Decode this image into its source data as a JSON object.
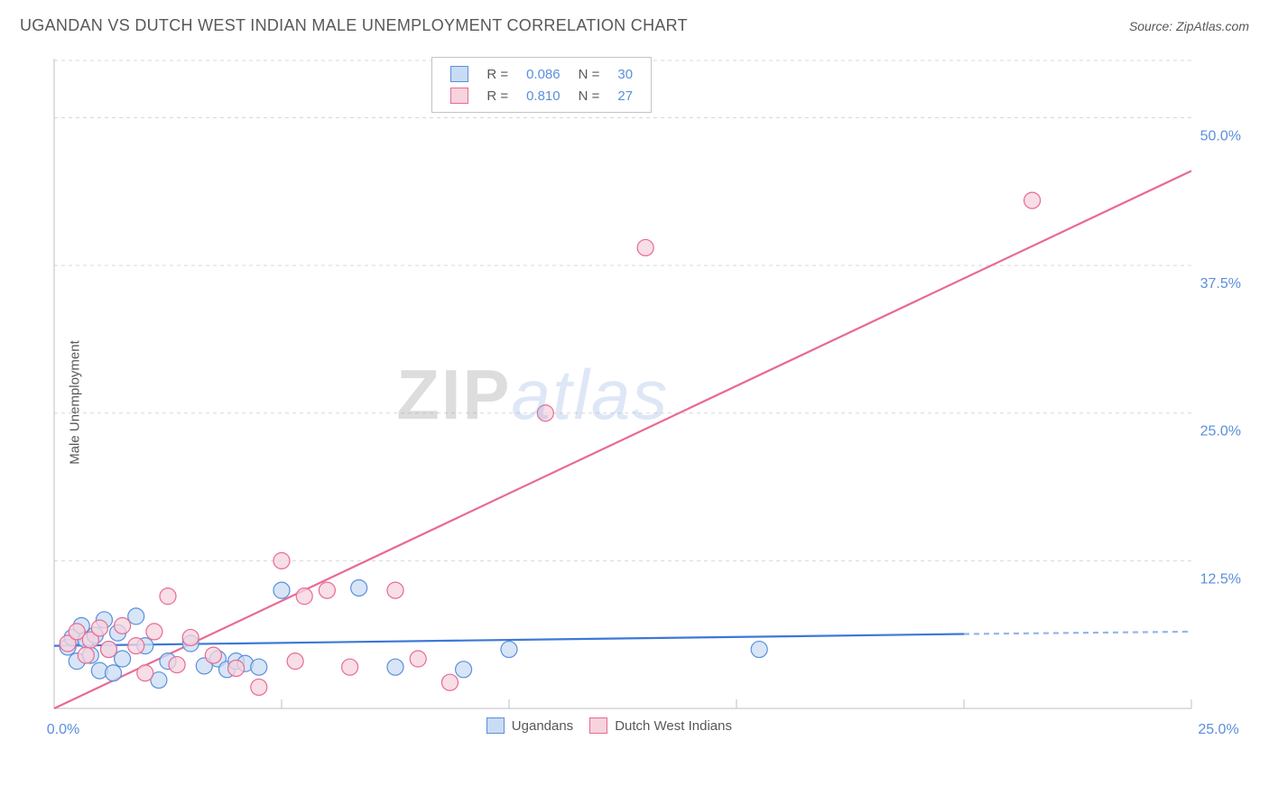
{
  "header": {
    "title": "UGANDAN VS DUTCH WEST INDIAN MALE UNEMPLOYMENT CORRELATION CHART",
    "source_prefix": "Source: ",
    "source": "ZipAtlas.com"
  },
  "y_axis_label": "Male Unemployment",
  "watermark": {
    "part1": "ZIP",
    "part2": "atlas"
  },
  "chart": {
    "type": "scatter",
    "background_color": "#ffffff",
    "grid_color": "#d8d8d8",
    "axis_color": "#bfbfbf",
    "tick_label_color": "#5a8fdc",
    "xlim": [
      0,
      25
    ],
    "ylim": [
      0,
      55
    ],
    "y_ticks": [
      12.5,
      25.0,
      37.5,
      50.0
    ],
    "y_tick_labels": [
      "12.5%",
      "25.0%",
      "37.5%",
      "50.0%"
    ],
    "x_ticks": [
      5,
      10,
      15,
      20,
      25
    ],
    "x_tick_labels": [
      "",
      "",
      "",
      "",
      "25.0%"
    ],
    "x_origin_label": "0.0%",
    "marker_radius": 9,
    "marker_stroke_width": 1.2,
    "line_width": 2.2,
    "series": [
      {
        "name": "Ugandans",
        "fill": "#c9dcf3",
        "stroke": "#5a8fdc",
        "line_color": "#3c78d8",
        "R": "0.086",
        "N": "30",
        "trend": {
          "x1": 0,
          "y1": 5.3,
          "x2": 20,
          "y2": 6.3,
          "dash_x2": 25,
          "dash_y2": 6.5
        },
        "points": [
          [
            0.3,
            5.2
          ],
          [
            0.4,
            6.0
          ],
          [
            0.5,
            4.0
          ],
          [
            0.6,
            7.0
          ],
          [
            0.7,
            5.8
          ],
          [
            0.8,
            4.5
          ],
          [
            0.9,
            6.2
          ],
          [
            1.0,
            3.2
          ],
          [
            1.1,
            7.5
          ],
          [
            1.2,
            5.0
          ],
          [
            1.3,
            3.0
          ],
          [
            1.4,
            6.4
          ],
          [
            1.5,
            4.2
          ],
          [
            1.8,
            7.8
          ],
          [
            2.0,
            5.3
          ],
          [
            2.3,
            2.4
          ],
          [
            2.5,
            4.0
          ],
          [
            3.0,
            5.5
          ],
          [
            3.3,
            3.6
          ],
          [
            3.6,
            4.2
          ],
          [
            3.8,
            3.3
          ],
          [
            4.0,
            4.0
          ],
          [
            4.2,
            3.8
          ],
          [
            4.5,
            3.5
          ],
          [
            5.0,
            10.0
          ],
          [
            6.7,
            10.2
          ],
          [
            7.5,
            3.5
          ],
          [
            9.0,
            3.3
          ],
          [
            10.0,
            5.0
          ],
          [
            15.5,
            5.0
          ]
        ]
      },
      {
        "name": "Dutch West Indians",
        "fill": "#f6d3dd",
        "stroke": "#e86a93",
        "line_color": "#e86a93",
        "R": "0.810",
        "N": "27",
        "trend": {
          "x1": 0,
          "y1": 0.0,
          "x2": 25,
          "y2": 45.5
        },
        "points": [
          [
            0.3,
            5.5
          ],
          [
            0.5,
            6.5
          ],
          [
            0.7,
            4.5
          ],
          [
            0.8,
            5.8
          ],
          [
            1.0,
            6.8
          ],
          [
            1.2,
            5.0
          ],
          [
            1.5,
            7.0
          ],
          [
            1.8,
            5.3
          ],
          [
            2.0,
            3.0
          ],
          [
            2.2,
            6.5
          ],
          [
            2.5,
            9.5
          ],
          [
            2.7,
            3.7
          ],
          [
            3.0,
            6.0
          ],
          [
            3.5,
            4.5
          ],
          [
            4.0,
            3.4
          ],
          [
            4.5,
            1.8
          ],
          [
            5.0,
            12.5
          ],
          [
            5.3,
            4.0
          ],
          [
            5.5,
            9.5
          ],
          [
            6.0,
            10.0
          ],
          [
            6.5,
            3.5
          ],
          [
            7.5,
            10.0
          ],
          [
            8.0,
            4.2
          ],
          [
            8.7,
            2.2
          ],
          [
            10.8,
            25.0
          ],
          [
            13.0,
            39.0
          ],
          [
            21.5,
            43.0
          ]
        ]
      }
    ]
  },
  "legend_top": {
    "border_color": "#c4c4c4",
    "bg": "#ffffff"
  },
  "legend_bottom": {
    "items": [
      "Ugandans",
      "Dutch West Indians"
    ]
  }
}
